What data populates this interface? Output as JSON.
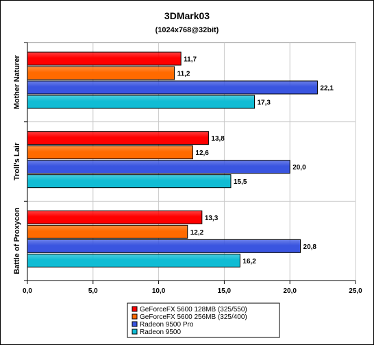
{
  "chart_data": {
    "type": "bar",
    "orientation": "horizontal",
    "title": "3DMark03",
    "subtitle": "(1024x768@32bit)",
    "categories": [
      "Mother Naturer",
      "Troll's Lair",
      "Battle of Proxycon"
    ],
    "xlim": [
      0,
      25
    ],
    "x_ticks": [
      "0,0",
      "5,0",
      "10,0",
      "15,0",
      "20,0",
      "25,0"
    ],
    "grid": true,
    "legend_position": "bottom",
    "series": [
      {
        "name": "GeForceFX 5600 128MB (325/550)",
        "color": "#ff0000",
        "values": [
          11.7,
          13.8,
          13.3
        ],
        "labels": [
          "11,7",
          "13,8",
          "13,3"
        ]
      },
      {
        "name": "GeForceFX 5600 256MB (325/400)",
        "color": "#ff6a00",
        "values": [
          11.2,
          12.6,
          12.2
        ],
        "labels": [
          "11,2",
          "12,6",
          "12,2"
        ]
      },
      {
        "name": "Radeon 9500 Pro",
        "color": "#3a55e0",
        "values": [
          22.1,
          20.0,
          20.8
        ],
        "labels": [
          "22,1",
          "20,0",
          "20,8"
        ]
      },
      {
        "name": "Radeon 9500",
        "color": "#10bcd4",
        "values": [
          17.3,
          15.5,
          16.2
        ],
        "labels": [
          "17,3",
          "15,5",
          "16,2"
        ]
      }
    ]
  }
}
